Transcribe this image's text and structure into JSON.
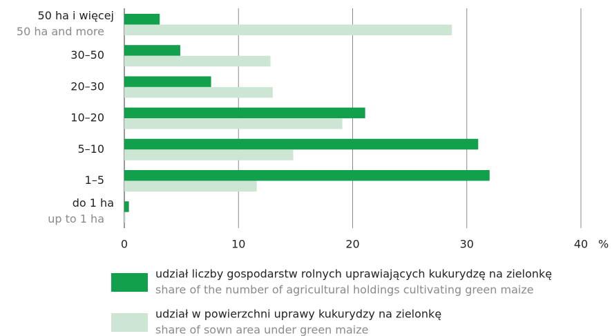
{
  "chart_data": {
    "type": "bar",
    "orientation": "horizontal",
    "categories": [
      "50 ha i więcej",
      "30–50",
      "20–30",
      "10–20",
      "5–10",
      "1–5",
      "do 1 ha"
    ],
    "categories_en": [
      "50 ha and more",
      null,
      null,
      null,
      null,
      null,
      "up to 1 ha"
    ],
    "series": [
      {
        "name": "udział liczby gospodarstw rolnych uprawiających kukurydzę na zielonkę",
        "name_en": "share of the number of agricultural holdings cultivating green maize",
        "color": "#13a04c",
        "values": [
          3.1,
          4.9,
          7.6,
          21.1,
          31.0,
          32.0,
          0.4
        ]
      },
      {
        "name": "udział w powierzchni uprawy kukurydzy na zielonkę",
        "name_en": "share of sown area under green maize",
        "color": "#cde6d3",
        "values": [
          28.7,
          12.8,
          13.0,
          19.1,
          14.8,
          11.6,
          0.1
        ]
      }
    ],
    "xlim": [
      0,
      40
    ],
    "xticks": [
      0,
      10,
      20,
      30,
      40
    ],
    "x_unit": "%",
    "grid": true
  }
}
